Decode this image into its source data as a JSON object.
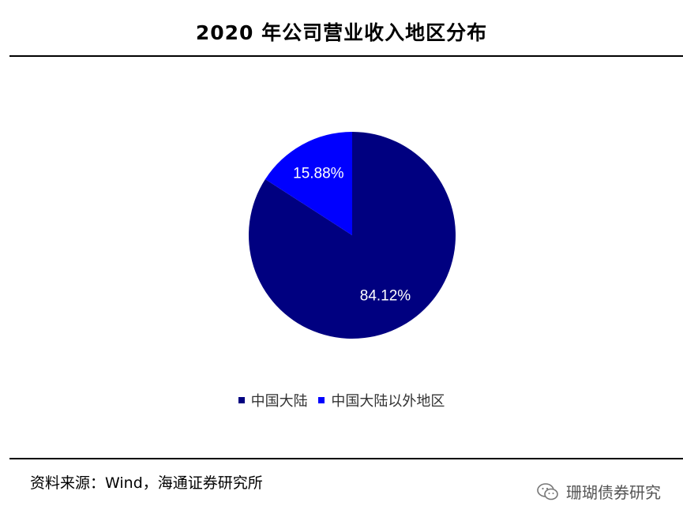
{
  "header": {
    "title": "2020 年公司营业收入地区分布"
  },
  "chart_data": {
    "type": "pie",
    "slices": [
      {
        "name": "中国大陆",
        "value": 84.12,
        "label": "84.12%",
        "color": "#000080"
      },
      {
        "name": "中国大陆以外地区",
        "value": 15.88,
        "label": "15.88%",
        "color": "#0000ff"
      }
    ],
    "start_angle_deg": 0,
    "direction": "clockwise",
    "legend_position": "bottom",
    "label_color": "#ffffff"
  },
  "footer": {
    "source": "资料来源：Wind，海通证券研究所"
  },
  "watermark": {
    "text": "珊瑚债券研究",
    "icon": "wechat-icon"
  }
}
